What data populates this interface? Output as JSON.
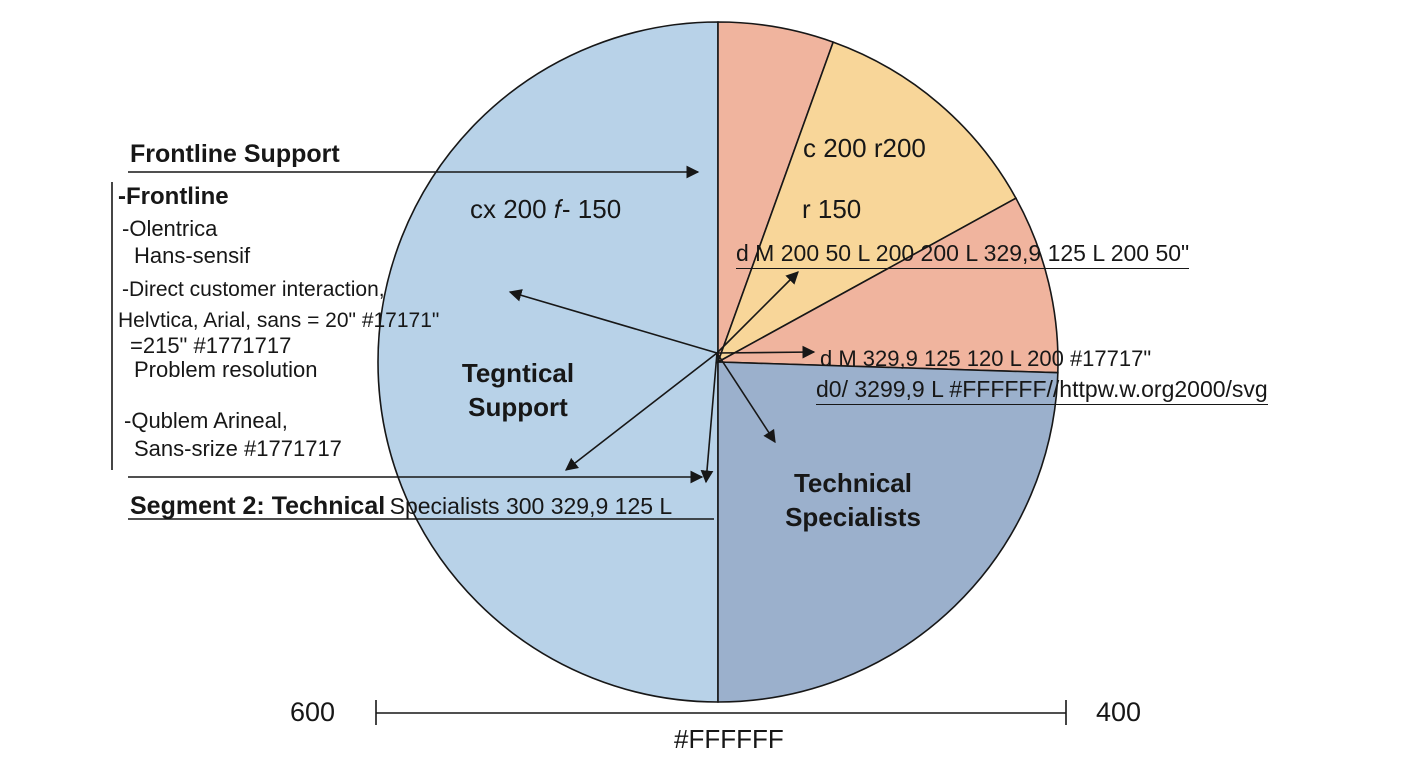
{
  "chart_data": {
    "type": "pie",
    "title": "",
    "legend": "none",
    "slices": [
      {
        "label": "Tegntical Support",
        "value": 50,
        "color": "#B8D2E8"
      },
      {
        "label": "",
        "value": 5.5,
        "color": "#F0B49E"
      },
      {
        "label": "",
        "value": 11.5,
        "color": "#F8D699"
      },
      {
        "label": "",
        "value": 8.5,
        "color": "#F0B49E"
      },
      {
        "label": "Technical Specialists",
        "value": 24.5,
        "color": "#9BB0CC"
      }
    ]
  },
  "labels": {
    "frontline_support": "Frontline Support",
    "frontline": "-Frontline",
    "olentrica": "-Olentrica",
    "hans_sensif": "Hans-sensif",
    "direct_customer": "-Direct customer interaction,",
    "helvtica": "Helvtica, Arial, sans = 20\" #17171\"",
    "eq_215": "=215\" #1771717",
    "problem_resolution": "Problem resolution",
    "qublem": "-Qublem Arineal,",
    "sans_srize": "Sans-srize #1771717",
    "segment2_bold": "Segment 2: Technical",
    "segment2_rest": "Specialists 300 329,9 125 L",
    "cx": "cx 200 𝑓- 150",
    "c200": "c 200 r200",
    "r150": "r 150",
    "path1": "d M 200 50 L 200 200 L 329,9 125 L 200 50\"",
    "path2": "d M 329,9 125 120 L 200 #17717\"",
    "path3": "d0/ 3299,9 L #FFFFFF//httpw.w.org2000/svg",
    "tegntical_1": "Tegntical",
    "tegntical_2": "Support",
    "technical_1": "Technical",
    "technical_2": "Specialists",
    "axis_left": "600",
    "axis_right": "400",
    "axis_bottom": "#FFFFFF"
  },
  "colors": {
    "text": "#171717",
    "background": "#FFFFFF"
  }
}
